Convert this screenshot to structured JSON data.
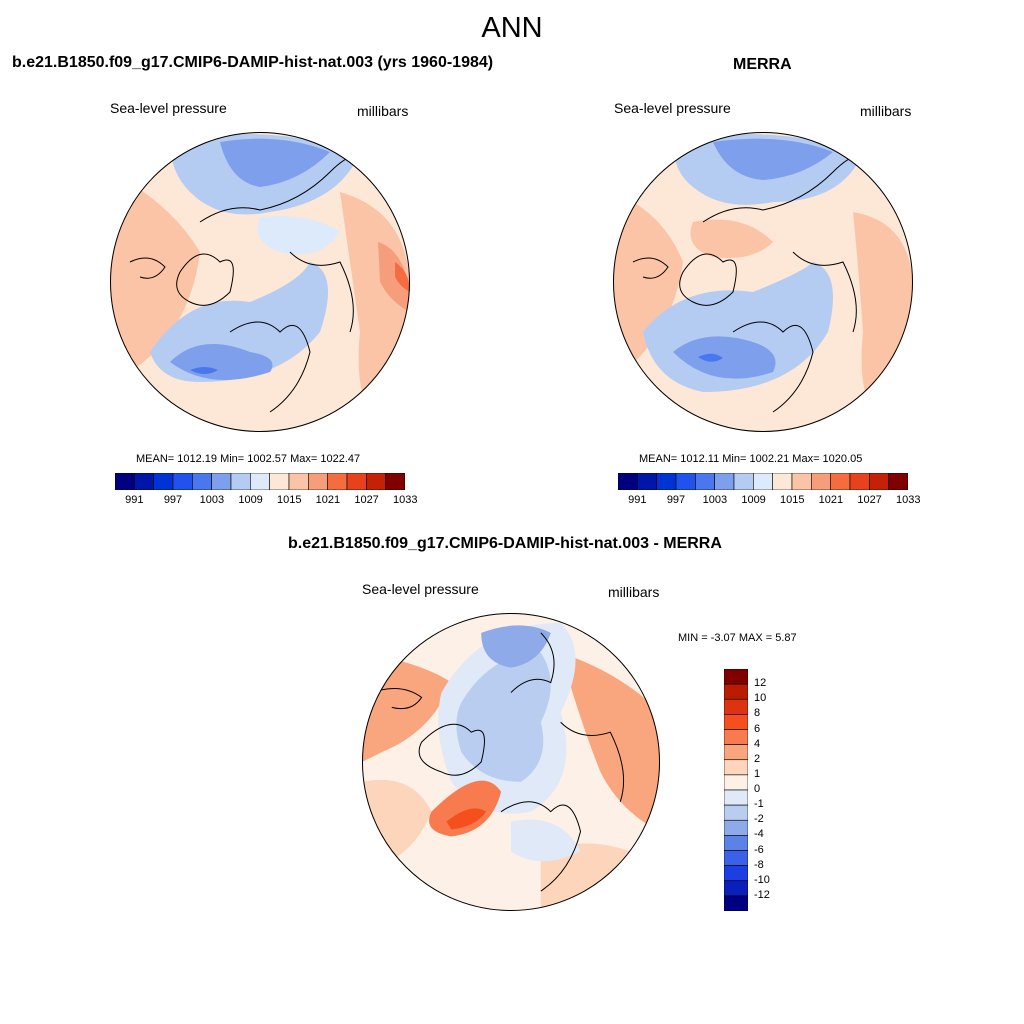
{
  "main_title": "ANN",
  "panels": [
    {
      "title": "b.e21.B1850.f09_g17.CMIP6-DAMIP-hist-nat.003 (yrs 1960-1984)",
      "left_label": "Sea-level pressure",
      "right_label": "millibars",
      "stats": "MEAN= 1012.19  Min= 1002.57  Max= 1022.47"
    },
    {
      "title": "MERRA",
      "left_label": "Sea-level pressure",
      "right_label": "millibars",
      "stats": "MEAN= 1012.11  Min= 1002.21  Max= 1020.05"
    },
    {
      "title": "b.e21.B1850.f09_g17.CMIP6-DAMIP-hist-nat.003 - MERRA",
      "left_label": "Sea-level pressure",
      "right_label": "millibars",
      "stats": "MIN =  -3.07 MAX =   5.87"
    }
  ],
  "abs_colorbar": {
    "colors": [
      "#00007f",
      "#0016a8",
      "#0033d6",
      "#2152ee",
      "#4a76ee",
      "#7ea0ec",
      "#b4cbf2",
      "#ddeafc",
      "#fde7d7",
      "#fbc4a6",
      "#f69e7c",
      "#f56c41",
      "#e8421c",
      "#c42106",
      "#800000"
    ],
    "tick_labels": [
      "991",
      "997",
      "1003",
      "1009",
      "1015",
      "1021",
      "1027",
      "1033"
    ]
  },
  "diff_colorbar": {
    "colors": [
      "#800000",
      "#b91c00",
      "#dc3410",
      "#f54f1d",
      "#f77b4e",
      "#f9a67e",
      "#fcd5ba",
      "#fdf0e6",
      "#dfe9f7",
      "#b9cdf0",
      "#8faae8",
      "#5d82e6",
      "#3b61e8",
      "#1d3ee3",
      "#0b1fbb",
      "#000080"
    ],
    "tick_labels": [
      "12",
      "10",
      "8",
      "6",
      "4",
      "2",
      "1",
      "0",
      "-1",
      "-2",
      "-4",
      "-6",
      "-8",
      "-10",
      "-12"
    ]
  }
}
